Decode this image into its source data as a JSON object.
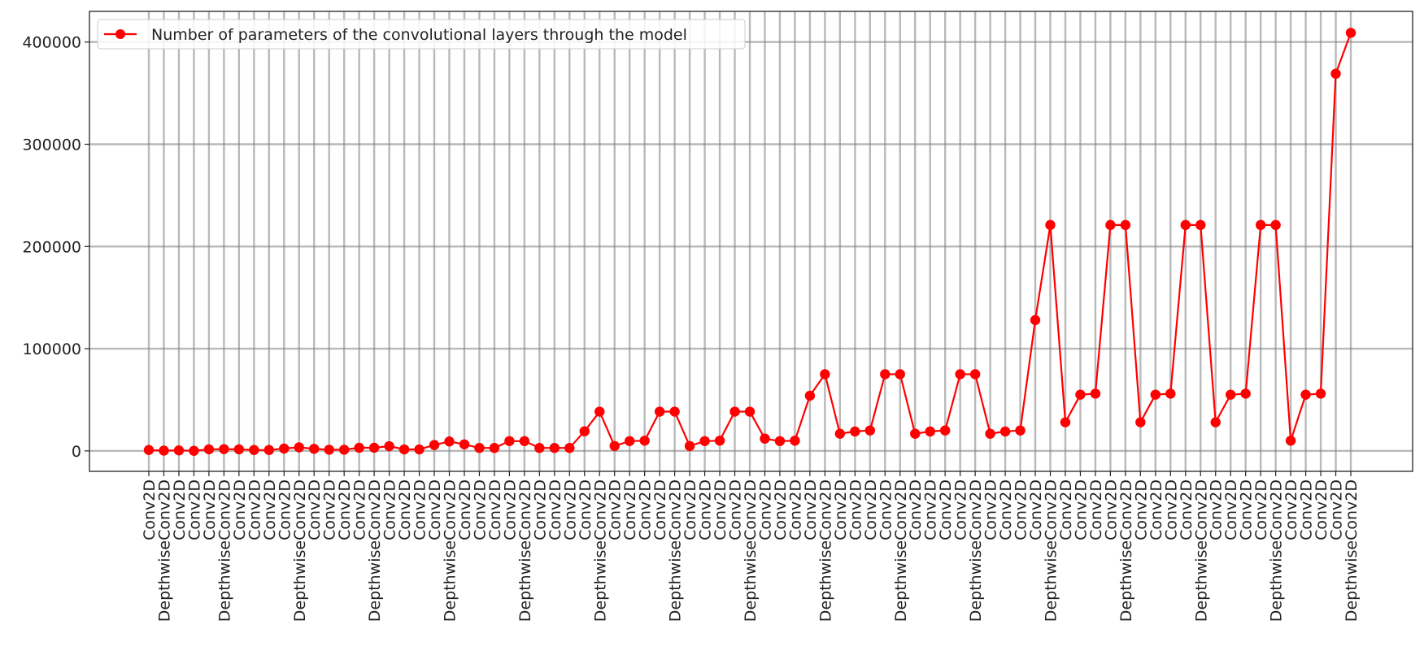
{
  "chart_data": {
    "type": "line",
    "title": "",
    "xlabel": "",
    "ylabel": "",
    "ylim": [
      -20000,
      430000
    ],
    "yticks": [
      0,
      100000,
      200000,
      300000,
      400000
    ],
    "grid": true,
    "legend_position": "top-left",
    "categories": [
      "Conv2D",
      "DepthwiseConv2D",
      "Conv2D",
      "Conv2D",
      "Conv2D",
      "DepthwiseConv2D",
      "Conv2D",
      "Conv2D",
      "Conv2D",
      "Conv2D",
      "DepthwiseConv2D",
      "Conv2D",
      "Conv2D",
      "Conv2D",
      "Conv2D",
      "DepthwiseConv2D",
      "Conv2D",
      "Conv2D",
      "Conv2D",
      "Conv2D",
      "DepthwiseConv2D",
      "Conv2D",
      "Conv2D",
      "Conv2D",
      "Conv2D",
      "DepthwiseConv2D",
      "Conv2D",
      "Conv2D",
      "Conv2D",
      "Conv2D",
      "DepthwiseConv2D",
      "Conv2D",
      "Conv2D",
      "Conv2D",
      "Conv2D",
      "DepthwiseConv2D",
      "Conv2D",
      "Conv2D",
      "Conv2D",
      "Conv2D",
      "DepthwiseConv2D",
      "Conv2D",
      "Conv2D",
      "Conv2D",
      "Conv2D",
      "DepthwiseConv2D",
      "Conv2D",
      "Conv2D",
      "Conv2D",
      "Conv2D",
      "DepthwiseConv2D",
      "Conv2D",
      "Conv2D",
      "Conv2D",
      "Conv2D",
      "DepthwiseConv2D",
      "Conv2D",
      "Conv2D",
      "Conv2D",
      "Conv2D",
      "DepthwiseConv2D",
      "Conv2D",
      "Conv2D",
      "Conv2D",
      "Conv2D",
      "DepthwiseConv2D",
      "Conv2D",
      "Conv2D",
      "Conv2D",
      "Conv2D",
      "DepthwiseConv2D",
      "Conv2D",
      "Conv2D",
      "Conv2D",
      "Conv2D",
      "DepthwiseConv2D",
      "Conv2D",
      "Conv2D",
      "Conv2D",
      "Conv2D",
      "DepthwiseConv2D"
    ],
    "series": [
      {
        "name": "Number of parameters of the convolutional layers through the model",
        "color": "#ff0000",
        "marker": "circle",
        "values": [
          864,
          288,
          512,
          96,
          1536,
          1728,
          1536,
          864,
          864,
          2304,
          3456,
          2048,
          1152,
          1152,
          3072,
          3072,
          4608,
          1440,
          1440,
          5760,
          9216,
          6400,
          2880,
          2880,
          9600,
          9600,
          2880,
          2880,
          2880,
          19200,
          38400,
          4800,
          9600,
          10000,
          38400,
          38400,
          4800,
          9600,
          10000,
          38400,
          38400,
          12000,
          9600,
          10000,
          54000,
          75000,
          16800,
          19000,
          20000,
          75000,
          75000,
          16800,
          19000,
          20000,
          75000,
          75000,
          16800,
          19000,
          20000,
          128000,
          221000,
          28000,
          55000,
          56000,
          221000,
          221000,
          28000,
          55000,
          56000,
          221000,
          221000,
          28000,
          55000,
          56000,
          221000,
          221000,
          10000,
          55000,
          56000,
          369000,
          409000
        ]
      }
    ]
  },
  "style": {
    "line_color": "#ff0000",
    "grid_color": "#b3b3b3",
    "axis_color": "#222222"
  }
}
